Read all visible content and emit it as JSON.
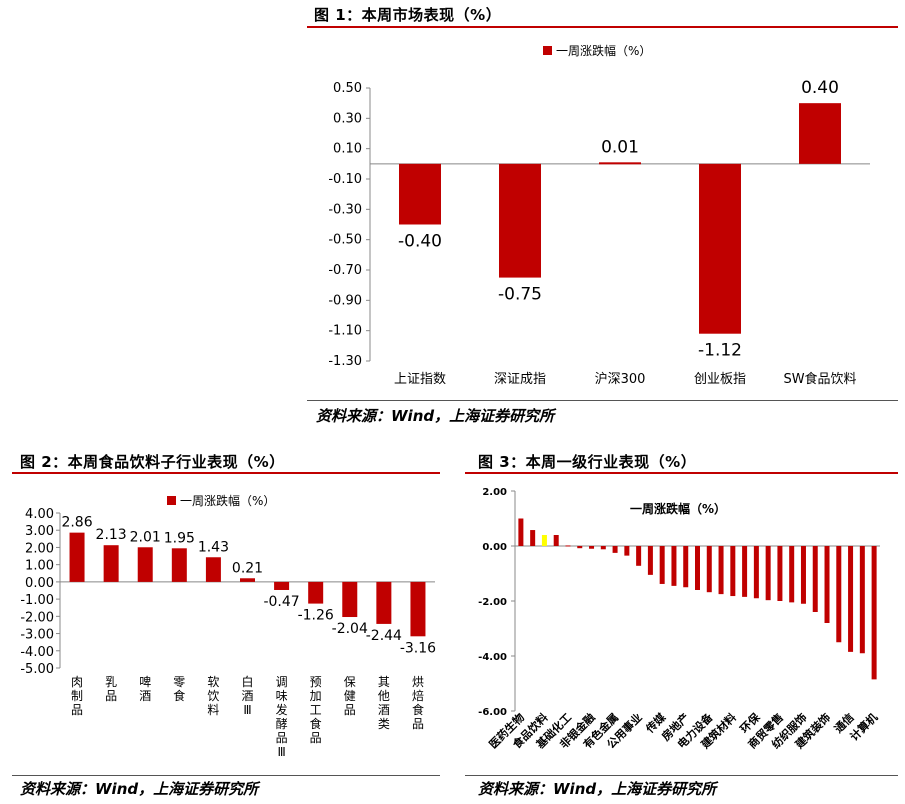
{
  "fig1": {
    "title": "图 1：本周市场表现（%）",
    "source": "资料来源：Wind，上海证券研究所"
  },
  "fig2": {
    "title": "图 2：本周食品饮料子行业表现（%）",
    "source": "资料来源：Wind，上海证券研究所"
  },
  "fig3": {
    "title": "图 3：本周一级行业表现（%）",
    "source": "资料来源：Wind，上海证券研究所"
  },
  "colors": {
    "bar": "#c00000",
    "highlight": "#ffff00",
    "rule": "#c00000"
  },
  "chart_data": [
    {
      "type": "bar",
      "legend": "一周涨跌幅（%）",
      "legend_position": "top",
      "categories": [
        "上证指数",
        "深证成指",
        "沪深300",
        "创业板指",
        "SW食品饮料"
      ],
      "values": [
        -0.4,
        -0.75,
        0.01,
        -1.12,
        0.4
      ],
      "data_labels": [
        "-0.40",
        "-0.75",
        "0.01",
        "-1.12",
        "0.40"
      ],
      "yticks": [
        "0.50",
        "0.30",
        "0.10",
        "-0.10",
        "-0.30",
        "-0.50",
        "-0.70",
        "-0.90",
        "-1.10",
        "-1.30"
      ],
      "ylim": [
        -1.3,
        0.5
      ],
      "grid": false
    },
    {
      "type": "bar",
      "legend": "一周涨跌幅（%）",
      "legend_position": "top",
      "categories": [
        "肉制品",
        "乳品",
        "啤酒",
        "零食",
        "软饮料",
        "白酒Ⅲ",
        "调味发酵品Ⅲ",
        "预加工食品",
        "保健品",
        "其他酒类",
        "烘焙食品"
      ],
      "values": [
        2.86,
        2.13,
        2.01,
        1.95,
        1.43,
        0.21,
        -0.47,
        -1.26,
        -2.04,
        -2.44,
        -3.16
      ],
      "data_labels": [
        "2.86",
        "2.13",
        "2.01",
        "1.95",
        "1.43",
        "0.21",
        "-0.47",
        "-1.26",
        "-2.04",
        "-2.44",
        "-3.16"
      ],
      "yticks": [
        "4.00",
        "3.00",
        "2.00",
        "1.00",
        "0.00",
        "-1.00",
        "-2.00",
        "-3.00",
        "-4.00",
        "-5.00"
      ],
      "ylim": [
        -5,
        4
      ],
      "grid": false
    },
    {
      "type": "bar",
      "legend": "一周涨跌幅（%）",
      "legend_position": "top",
      "highlight_index": 2,
      "categories": [
        "医药生物",
        "",
        "食品饮料",
        "",
        "基础化工",
        "",
        "非银金融",
        "",
        "有色金属",
        "",
        "公用事业",
        "",
        "传媒",
        "",
        "房地产",
        "",
        "电力设备",
        "",
        "建筑材料",
        "",
        "环保",
        "",
        "商贸零售",
        "",
        "纺织服饰",
        "",
        "建筑装饰",
        "",
        "通信",
        "",
        "计算机"
      ],
      "values": [
        1.0,
        0.58,
        0.4,
        0.4,
        0.02,
        -0.08,
        -0.1,
        -0.12,
        -0.25,
        -0.35,
        -0.72,
        -1.05,
        -1.38,
        -1.45,
        -1.5,
        -1.6,
        -1.68,
        -1.75,
        -1.82,
        -1.85,
        -1.9,
        -1.97,
        -2.0,
        -2.05,
        -2.1,
        -2.4,
        -2.8,
        -3.5,
        -3.85,
        -3.9,
        -4.85
      ],
      "yticks": [
        "2.00",
        "0.00",
        "-2.00",
        "-4.00",
        "-6.00"
      ],
      "ylim": [
        -6,
        2
      ],
      "grid": false
    }
  ]
}
